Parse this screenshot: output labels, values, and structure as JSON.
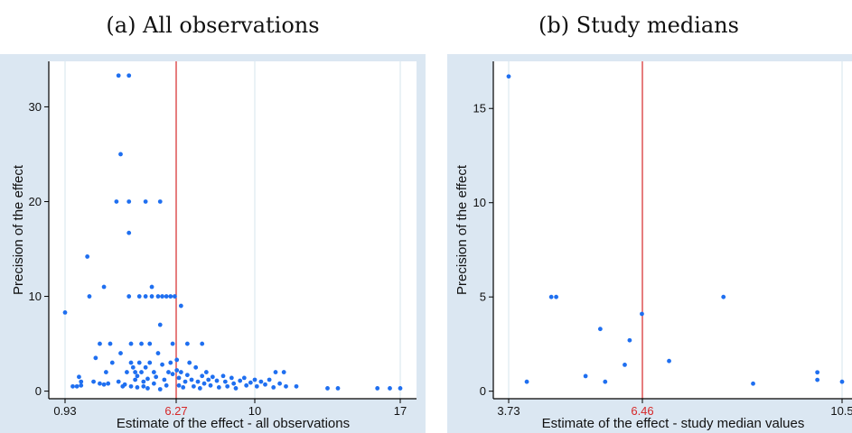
{
  "chart_data": [
    {
      "type": "scatter",
      "title": "(a) All observations",
      "xlabel": "Estimate of the effect - all observations",
      "ylabel": "Precision of the effect",
      "xticks": [
        0.93,
        6.27,
        10,
        17
      ],
      "xtick_labels": [
        "0.93",
        "6.27",
        "10",
        "17"
      ],
      "yticks": [
        0,
        10,
        20,
        30
      ],
      "xlim": [
        0.55,
        17.45
      ],
      "ylim": [
        -0.8,
        34.8
      ],
      "reference_line": {
        "x": 6.27,
        "label": "6.27",
        "color": "#d62728"
      },
      "grid": "vertical",
      "point_color": "#1f6ff0",
      "points": [
        [
          0.93,
          8.3
        ],
        [
          1.3,
          0.5
        ],
        [
          1.5,
          0.5
        ],
        [
          1.7,
          0.6
        ],
        [
          1.6,
          1.5
        ],
        [
          1.7,
          1
        ],
        [
          2.0,
          14.2
        ],
        [
          2.1,
          10
        ],
        [
          2.3,
          1
        ],
        [
          2.4,
          3.5
        ],
        [
          2.6,
          5
        ],
        [
          2.6,
          0.8
        ],
        [
          2.8,
          11
        ],
        [
          2.8,
          0.7
        ],
        [
          2.9,
          2
        ],
        [
          3.0,
          0.8
        ],
        [
          3.1,
          5
        ],
        [
          3.2,
          3
        ],
        [
          3.4,
          20
        ],
        [
          3.5,
          33.3
        ],
        [
          3.5,
          1
        ],
        [
          3.6,
          25
        ],
        [
          3.6,
          4
        ],
        [
          3.7,
          0.5
        ],
        [
          3.8,
          0.7
        ],
        [
          3.9,
          2
        ],
        [
          4.0,
          33.3
        ],
        [
          4.0,
          20
        ],
        [
          4.0,
          16.7
        ],
        [
          4.0,
          10
        ],
        [
          4.1,
          5
        ],
        [
          4.1,
          3
        ],
        [
          4.1,
          0.5
        ],
        [
          4.2,
          2.5
        ],
        [
          4.3,
          2
        ],
        [
          4.3,
          1.2
        ],
        [
          4.4,
          1.6
        ],
        [
          4.4,
          0.4
        ],
        [
          4.5,
          3
        ],
        [
          4.5,
          10
        ],
        [
          4.6,
          5
        ],
        [
          4.6,
          2
        ],
        [
          4.7,
          1
        ],
        [
          4.7,
          0.5
        ],
        [
          4.8,
          20
        ],
        [
          4.8,
          10
        ],
        [
          4.8,
          2.5
        ],
        [
          4.9,
          1.3
        ],
        [
          4.9,
          0.3
        ],
        [
          5.0,
          5
        ],
        [
          5.0,
          3
        ],
        [
          5.1,
          11
        ],
        [
          5.1,
          10
        ],
        [
          5.2,
          2
        ],
        [
          5.2,
          0.8
        ],
        [
          5.3,
          1.5
        ],
        [
          5.4,
          10
        ],
        [
          5.4,
          4
        ],
        [
          5.5,
          7
        ],
        [
          5.5,
          20
        ],
        [
          5.5,
          0.2
        ],
        [
          5.6,
          10
        ],
        [
          5.6,
          2.8
        ],
        [
          5.7,
          1.2
        ],
        [
          5.8,
          10
        ],
        [
          5.8,
          0.6
        ],
        [
          5.9,
          2
        ],
        [
          6.0,
          10
        ],
        [
          6.0,
          3
        ],
        [
          6.1,
          5
        ],
        [
          6.1,
          1.8
        ],
        [
          6.2,
          10
        ],
        [
          6.3,
          3.3
        ],
        [
          6.3,
          2.2
        ],
        [
          6.4,
          1.4
        ],
        [
          6.4,
          0.6
        ],
        [
          6.5,
          9
        ],
        [
          6.5,
          2
        ],
        [
          6.6,
          0.4
        ],
        [
          6.7,
          1
        ],
        [
          6.8,
          5
        ],
        [
          6.8,
          1.7
        ],
        [
          6.9,
          3
        ],
        [
          7.0,
          1.2
        ],
        [
          7.1,
          0.5
        ],
        [
          7.2,
          2.5
        ],
        [
          7.3,
          1
        ],
        [
          7.4,
          0.3
        ],
        [
          7.5,
          5
        ],
        [
          7.5,
          1.6
        ],
        [
          7.6,
          0.8
        ],
        [
          7.7,
          2
        ],
        [
          7.8,
          1.2
        ],
        [
          7.9,
          0.6
        ],
        [
          8.0,
          1.5
        ],
        [
          8.2,
          1.1
        ],
        [
          8.3,
          0.4
        ],
        [
          8.5,
          1.6
        ],
        [
          8.6,
          1
        ],
        [
          8.7,
          0.5
        ],
        [
          8.9,
          1.4
        ],
        [
          9.0,
          0.8
        ],
        [
          9.1,
          0.3
        ],
        [
          9.3,
          1.1
        ],
        [
          9.5,
          1.4
        ],
        [
          9.6,
          0.6
        ],
        [
          9.8,
          0.9
        ],
        [
          10.0,
          1.2
        ],
        [
          10.1,
          0.5
        ],
        [
          10.3,
          1
        ],
        [
          10.5,
          0.7
        ],
        [
          10.7,
          1.2
        ],
        [
          10.9,
          0.4
        ],
        [
          11.0,
          2
        ],
        [
          11.2,
          0.8
        ],
        [
          11.4,
          2
        ],
        [
          11.5,
          0.5
        ],
        [
          12.0,
          0.5
        ],
        [
          13.5,
          0.3
        ],
        [
          14.0,
          0.3
        ],
        [
          15.9,
          0.3
        ],
        [
          16.5,
          0.3
        ],
        [
          17.0,
          0.3
        ]
      ]
    },
    {
      "type": "scatter",
      "title": "(b) Study medians",
      "xlabel": "Estimate of the effect - study median values",
      "ylabel": "Precision of the effect",
      "xticks": [
        3.73,
        6.46,
        10.5
      ],
      "xtick_labels": [
        "3.73",
        "6.46",
        "10.5"
      ],
      "yticks": [
        0,
        5,
        10,
        15
      ],
      "ylim": [
        -0.4,
        17.5
      ],
      "reference_line": {
        "x": 6.46,
        "label": "6.46",
        "color": "#d62728"
      },
      "grid": "vertical",
      "point_color": "#1f6ff0",
      "points": [
        [
          3.73,
          16.7
        ],
        [
          4.1,
          0.5
        ],
        [
          4.6,
          5
        ],
        [
          4.7,
          5
        ],
        [
          5.3,
          0.8
        ],
        [
          5.6,
          3.3
        ],
        [
          5.7,
          0.5
        ],
        [
          6.1,
          1.4
        ],
        [
          6.2,
          2.7
        ],
        [
          6.45,
          4.1
        ],
        [
          7.0,
          1.6
        ],
        [
          8.1,
          5
        ],
        [
          8.7,
          0.4
        ],
        [
          10.0,
          1
        ],
        [
          10.0,
          0.6
        ],
        [
          10.5,
          0.5
        ]
      ]
    }
  ]
}
